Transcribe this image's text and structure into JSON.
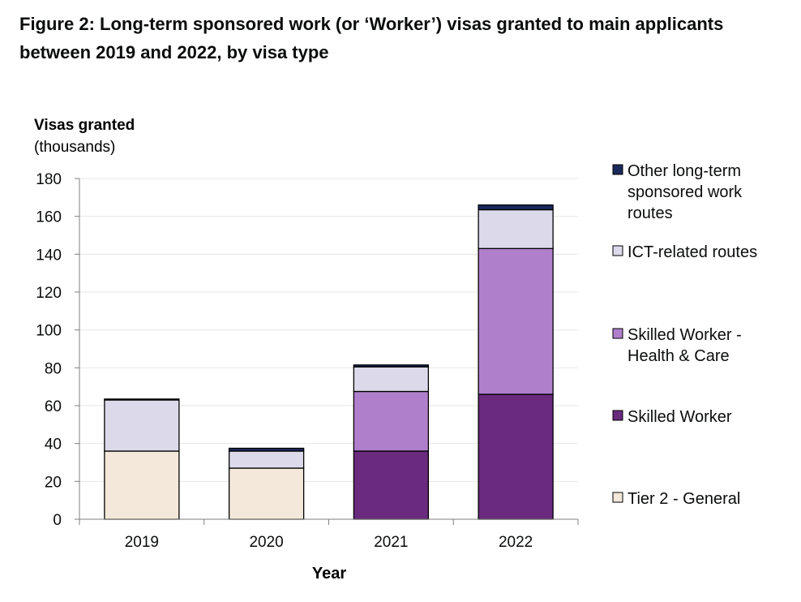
{
  "figure_title": "Figure 2: Long-term sponsored work (or ‘Worker’) visas granted to main applicants between 2019 and 2022, by visa type",
  "chart_data": {
    "type": "bar",
    "stacked": true,
    "title": "Figure 2: Long-term sponsored work (or ‘Worker’) visas granted to main applicants between 2019 and 2022, by visa type",
    "ylabel": "Visas granted",
    "ylabel_unit": "(thousands)",
    "xlabel": "Year",
    "categories": [
      "2019",
      "2020",
      "2021",
      "2022"
    ],
    "ylim": [
      0,
      180
    ],
    "yticks": [
      0,
      20,
      40,
      60,
      80,
      100,
      120,
      140,
      160,
      180
    ],
    "grid": "horizontal",
    "legend_position": "right",
    "series": [
      {
        "name": "Tier 2 - General",
        "color": "#f3e8da",
        "values": [
          36,
          27,
          0,
          0
        ]
      },
      {
        "name": "Skilled Worker",
        "color": "#6a2a7e",
        "values": [
          0,
          0,
          36,
          66
        ]
      },
      {
        "name": "Skilled Worker - Health & Care",
        "color": "#b07fcc",
        "values": [
          0,
          0,
          31.5,
          77
        ]
      },
      {
        "name": "ICT-related routes",
        "color": "#dcdaea",
        "values": [
          27,
          9,
          13,
          20.5
        ]
      },
      {
        "name": "Other long-term sponsored work routes",
        "color": "#1b2a5c",
        "values": [
          0.5,
          1.5,
          1,
          2.5
        ]
      }
    ],
    "legend_order": [
      {
        "lines": [
          "Other long-term",
          "sponsored work",
          "routes"
        ],
        "series_index": 4
      },
      {
        "lines": [
          "ICT-related routes"
        ],
        "series_index": 3
      },
      {
        "lines": [
          "Skilled Worker -",
          "Health & Care"
        ],
        "series_index": 2
      },
      {
        "lines": [
          "Skilled Worker"
        ],
        "series_index": 1
      },
      {
        "lines": [
          "Tier 2 - General"
        ],
        "series_index": 0
      }
    ]
  }
}
